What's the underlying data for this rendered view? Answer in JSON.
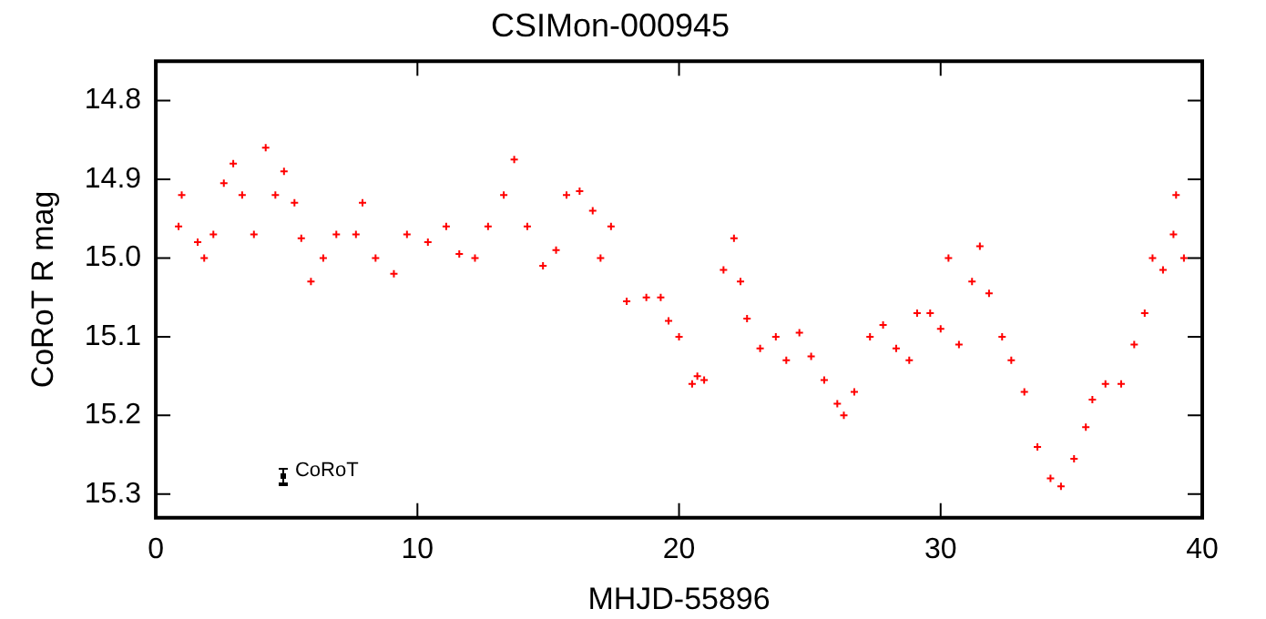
{
  "chart_data": {
    "type": "scatter",
    "title": "CSIMon-000945",
    "xlabel": "MHJD-55896",
    "ylabel": "CoRoT R mag",
    "xlim": [
      0,
      40
    ],
    "xticks": [
      0,
      10,
      20,
      30,
      40
    ],
    "ylim": [
      15.33,
      14.75
    ],
    "yticks": [
      {
        "value": 14.8,
        "label": "14.8"
      },
      {
        "value": 14.9,
        "label": "14.9"
      },
      {
        "value": 15,
        "label": "15.0"
      },
      {
        "value": 15.1,
        "label": "15.1"
      },
      {
        "value": 15.2,
        "label": "15.2"
      },
      {
        "value": 15.3,
        "label": "15.3"
      }
    ],
    "grid": false,
    "legend": false,
    "marker": "cross",
    "annotations": [
      "CoRoT"
    ],
    "series": [
      {
        "color": "#ff0000",
        "x": [
          0.87,
          0.99,
          1.6,
          1.85,
          2.2,
          2.6,
          2.96,
          3.3,
          3.75,
          4.2,
          4.57,
          4.9,
          5.3,
          5.56,
          5.93,
          6.4,
          6.9,
          7.65,
          7.9,
          8.4,
          9.1,
          9.6,
          10.4,
          11.1,
          11.6,
          12.2,
          12.7,
          13.3,
          13.7,
          14.2,
          14.8,
          15.3,
          15.7,
          16.2,
          16.7,
          17.0,
          17.4,
          18.0,
          18.75,
          19.3,
          19.6,
          20.0,
          20.5,
          20.7,
          20.96,
          21.7,
          22.1,
          22.35,
          22.6,
          23.1,
          23.7,
          24.1,
          24.6,
          25.05,
          25.55,
          26.05,
          26.3,
          26.7,
          27.3,
          27.8,
          28.3,
          28.8,
          29.1,
          29.6,
          30.0,
          30.3,
          30.7,
          31.2,
          31.5,
          31.85,
          32.35,
          32.7,
          33.2,
          33.7,
          34.2,
          34.6,
          35.1,
          35.55,
          35.8,
          36.3,
          36.9,
          37.4,
          37.8,
          38.1,
          38.5,
          38.9,
          39.0,
          39.3
        ],
        "values": [
          14.96,
          14.92,
          14.98,
          15.0,
          14.97,
          14.905,
          14.88,
          14.92,
          14.97,
          14.86,
          14.92,
          14.89,
          14.93,
          14.975,
          15.03,
          15.0,
          14.97,
          14.97,
          14.93,
          15.0,
          15.02,
          14.97,
          14.98,
          14.96,
          14.995,
          15.0,
          14.96,
          14.92,
          14.875,
          14.96,
          15.01,
          14.99,
          14.92,
          14.915,
          14.94,
          15.0,
          14.96,
          15.055,
          15.05,
          15.05,
          15.08,
          15.1,
          15.16,
          15.15,
          15.155,
          15.015,
          14.975,
          15.03,
          15.077,
          15.115,
          15.1,
          15.13,
          15.095,
          15.125,
          15.155,
          15.185,
          15.2,
          15.17,
          15.1,
          15.085,
          15.115,
          15.13,
          15.07,
          15.07,
          15.09,
          15.0,
          15.11,
          15.03,
          14.985,
          15.045,
          15.1,
          15.13,
          15.17,
          15.24,
          15.28,
          15.29,
          15.255,
          15.215,
          15.18,
          15.16,
          15.16,
          15.11,
          15.07,
          15.0,
          15.015,
          14.97,
          14.92,
          15.0
        ]
      }
    ]
  }
}
